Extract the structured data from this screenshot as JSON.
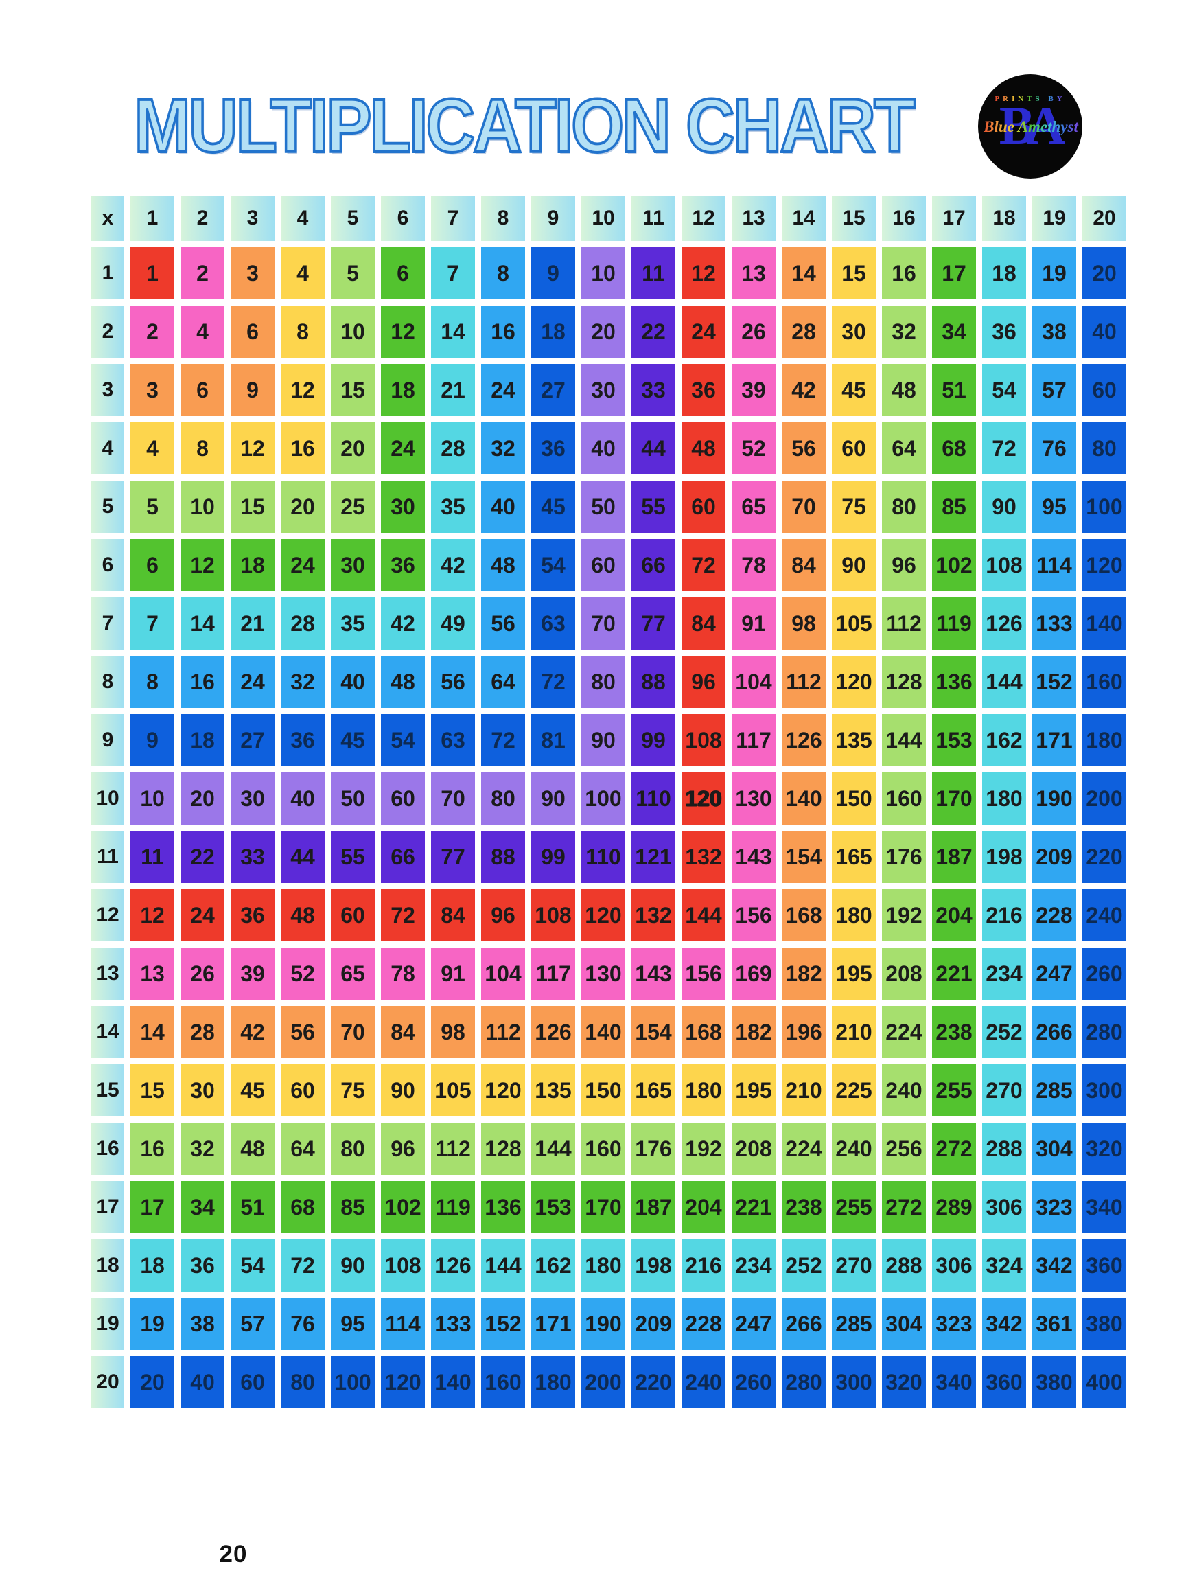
{
  "page": {
    "background": "#ffffff",
    "page_number": "20"
  },
  "title": {
    "text": "MULTIPLICATION CHART",
    "fill_color": "#b5e1f5",
    "outline_color": "#2273cc"
  },
  "logo": {
    "top_text": "PRINTS BY",
    "monogram": "BA",
    "script_text": "Blue Amethyst",
    "bg_color": "#070707",
    "monogram_color": "#2b2cd0",
    "rainbow_colors": [
      "#e0412e",
      "#ef913b",
      "#e8d32c",
      "#4fc43c",
      "#3fc9c9",
      "#3f6ee0",
      "#8a3fe0"
    ]
  },
  "grid": {
    "corner_label": "x",
    "header_gradient": {
      "from": "#d7f4da",
      "to": "#9edff2"
    },
    "palette_cycle": [
      "#ee3a2b",
      "#f765c4",
      "#f99c52",
      "#fdd54d",
      "#a6df6e",
      "#53c32f",
      "#54d7e3",
      "#30a7f2",
      "#0e60dd",
      "#9b77e9",
      "#5c2ad8"
    ],
    "palette_cycle_names": [
      "red",
      "pink",
      "orange",
      "yellow",
      "light-green",
      "green",
      "turquoise",
      "sky-blue",
      "dark-blue",
      "light-purple",
      "purple"
    ],
    "color_rule": "cell background = palette_cycle[(max(row,col)-1) % 11]",
    "text_color": "#1b1b1b",
    "text_color_on_dark_blue": "#0d2a52",
    "bold_cell": {
      "row": 10,
      "col": 12,
      "value": 120
    }
  },
  "chart_data": {
    "type": "table",
    "title": "MULTIPLICATION CHART",
    "x_categories": [
      1,
      2,
      3,
      4,
      5,
      6,
      7,
      8,
      9,
      10,
      11,
      12,
      13,
      14,
      15,
      16,
      17,
      18,
      19,
      20
    ],
    "y_categories": [
      1,
      2,
      3,
      4,
      5,
      6,
      7,
      8,
      9,
      10,
      11,
      12,
      13,
      14,
      15,
      16,
      17,
      18,
      19,
      20
    ],
    "values": [
      [
        1,
        2,
        3,
        4,
        5,
        6,
        7,
        8,
        9,
        10,
        11,
        12,
        13,
        14,
        15,
        16,
        17,
        18,
        19,
        20
      ],
      [
        2,
        4,
        6,
        8,
        10,
        12,
        14,
        16,
        18,
        20,
        22,
        24,
        26,
        28,
        30,
        32,
        34,
        36,
        38,
        40
      ],
      [
        3,
        6,
        9,
        12,
        15,
        18,
        21,
        24,
        27,
        30,
        33,
        36,
        39,
        42,
        45,
        48,
        51,
        54,
        57,
        60
      ],
      [
        4,
        8,
        12,
        16,
        20,
        24,
        28,
        32,
        36,
        40,
        44,
        48,
        52,
        56,
        60,
        64,
        68,
        72,
        76,
        80
      ],
      [
        5,
        10,
        15,
        20,
        25,
        30,
        35,
        40,
        45,
        50,
        55,
        60,
        65,
        70,
        75,
        80,
        85,
        90,
        95,
        100
      ],
      [
        6,
        12,
        18,
        24,
        30,
        36,
        42,
        48,
        54,
        60,
        66,
        72,
        78,
        84,
        90,
        96,
        102,
        108,
        114,
        120
      ],
      [
        7,
        14,
        21,
        28,
        35,
        42,
        49,
        56,
        63,
        70,
        77,
        84,
        91,
        98,
        105,
        112,
        119,
        126,
        133,
        140
      ],
      [
        8,
        16,
        24,
        32,
        40,
        48,
        56,
        64,
        72,
        80,
        88,
        96,
        104,
        112,
        120,
        128,
        136,
        144,
        152,
        160
      ],
      [
        9,
        18,
        27,
        36,
        45,
        54,
        63,
        72,
        81,
        90,
        99,
        108,
        117,
        126,
        135,
        144,
        153,
        162,
        171,
        180
      ],
      [
        10,
        20,
        30,
        40,
        50,
        60,
        70,
        80,
        90,
        100,
        110,
        120,
        130,
        140,
        150,
        160,
        170,
        180,
        190,
        200
      ],
      [
        11,
        22,
        33,
        44,
        55,
        66,
        77,
        88,
        99,
        110,
        121,
        132,
        143,
        154,
        165,
        176,
        187,
        198,
        209,
        220
      ],
      [
        12,
        24,
        36,
        48,
        60,
        72,
        84,
        96,
        108,
        120,
        132,
        144,
        156,
        168,
        180,
        192,
        204,
        216,
        228,
        240
      ],
      [
        13,
        26,
        39,
        52,
        65,
        78,
        91,
        104,
        117,
        130,
        143,
        156,
        169,
        182,
        195,
        208,
        221,
        234,
        247,
        260
      ],
      [
        14,
        28,
        42,
        56,
        70,
        84,
        98,
        112,
        126,
        140,
        154,
        168,
        182,
        196,
        210,
        224,
        238,
        252,
        266,
        280
      ],
      [
        15,
        30,
        45,
        60,
        75,
        90,
        105,
        120,
        135,
        150,
        165,
        180,
        195,
        210,
        225,
        240,
        255,
        270,
        285,
        300
      ],
      [
        16,
        32,
        48,
        64,
        80,
        96,
        112,
        128,
        144,
        160,
        176,
        192,
        208,
        224,
        240,
        256,
        272,
        288,
        304,
        320
      ],
      [
        17,
        34,
        51,
        68,
        85,
        102,
        119,
        136,
        153,
        170,
        187,
        204,
        221,
        238,
        255,
        272,
        289,
        306,
        323,
        340
      ],
      [
        18,
        36,
        54,
        72,
        90,
        108,
        126,
        144,
        162,
        180,
        198,
        216,
        234,
        252,
        270,
        288,
        306,
        324,
        342,
        360
      ],
      [
        19,
        38,
        57,
        76,
        95,
        114,
        133,
        152,
        171,
        190,
        209,
        228,
        247,
        266,
        285,
        304,
        323,
        342,
        361,
        380
      ],
      [
        20,
        40,
        60,
        80,
        100,
        120,
        140,
        160,
        180,
        200,
        220,
        240,
        260,
        280,
        300,
        320,
        340,
        360,
        380,
        400
      ]
    ]
  }
}
